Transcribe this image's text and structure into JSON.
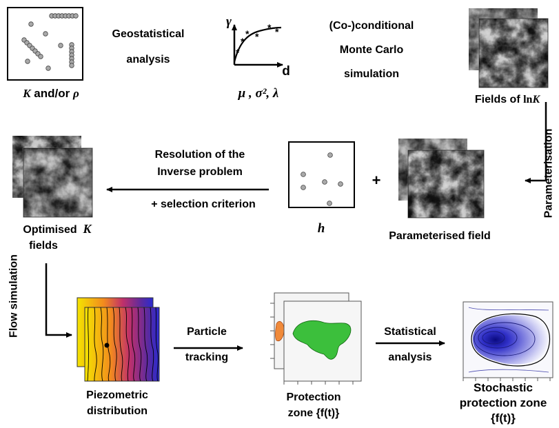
{
  "row1": {
    "data_label_var": "K",
    "data_label_rest": " and/or ",
    "data_label_var2": "ρ",
    "geo_line1": "Geostatistical",
    "geo_line2": "analysis",
    "vario_y": "γ",
    "vario_x": "d",
    "params": "μ , σ², λ",
    "mc_line1": "(Co-)conditional",
    "mc_line2": "Monte Carlo",
    "mc_line3": "simulation",
    "fields_label_prefix": "Fields of ",
    "fields_label_ln": "ln",
    "fields_label_var": "K"
  },
  "row2": {
    "optimised_line1": "Optimised",
    "optimised_var": "K",
    "optimised_line2": "fields",
    "inverse_line1": "Resolution of the",
    "inverse_line2": "Inverse problem",
    "inverse_line3": "+ selection criterion",
    "h_label": "h",
    "plus": "+",
    "parameterised_label": "Parameterised field",
    "parameterisation": "Parameterisation"
  },
  "row3": {
    "flow": "Flow simulation",
    "piezo_line1": "Piezometric",
    "piezo_line2": "distribution",
    "particle_line1": "Particle",
    "particle_line2": "tracking",
    "protection_line1": "Protection",
    "protection_line2": "zone {f(t)}",
    "statistical_line1": "Statistical",
    "statistical_line2": "analysis",
    "stochastic_line1": "Stochastic",
    "stochastic_line2": "protection zone",
    "stochastic_line3": "{f(t)}"
  },
  "colors": {
    "point_fill": "#a9a9a9",
    "field_dark": "#4a4a4a",
    "field_light": "#e0e0e0",
    "protection_green": "#3cbf3c",
    "protection_orange": "#f08a3a",
    "stochastic_blue": "#1a1a9a",
    "piezo_yellow": "#f5e400",
    "piezo_blue": "#2a2ad0"
  }
}
